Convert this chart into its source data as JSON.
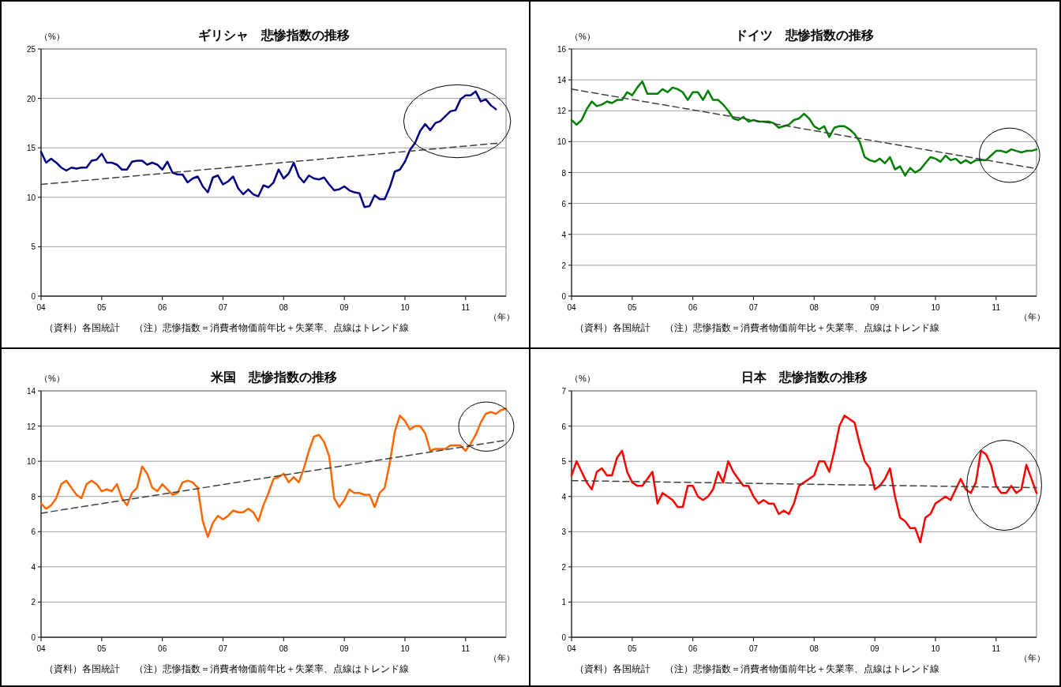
{
  "chart_data": [
    {
      "type": "line",
      "title": "ギリシャ　悲惨指数の推移",
      "ylabel": "（%）",
      "xlabel": "（年）",
      "annotations": [
        "（資料）各国統計",
        "（注）悲惨指数＝消費者物価前年比＋失業率、点線はトレンド線"
      ],
      "xlim": [
        "2004-01",
        "2011-09"
      ],
      "xticks": [
        {
          "value": "2004-01",
          "label": "04"
        },
        {
          "value": "2005-01",
          "label": "05"
        },
        {
          "value": "2006-01",
          "label": "06"
        },
        {
          "value": "2007-01",
          "label": "07"
        },
        {
          "value": "2008-01",
          "label": "08"
        },
        {
          "value": "2009-01",
          "label": "09"
        },
        {
          "value": "2010-01",
          "label": "10"
        },
        {
          "value": "2011-01",
          "label": "11"
        }
      ],
      "ylim": [
        0,
        25
      ],
      "yticks": [
        0,
        5,
        10,
        15,
        20,
        25
      ],
      "grid": "y",
      "x": [
        "2004-01",
        "2004-02",
        "2004-03",
        "2004-04",
        "2004-05",
        "2004-06",
        "2004-07",
        "2004-08",
        "2004-09",
        "2004-10",
        "2004-11",
        "2004-12",
        "2005-01",
        "2005-02",
        "2005-03",
        "2005-04",
        "2005-05",
        "2005-06",
        "2005-07",
        "2005-08",
        "2005-09",
        "2005-10",
        "2005-11",
        "2005-12",
        "2006-01",
        "2006-02",
        "2006-03",
        "2006-04",
        "2006-05",
        "2006-06",
        "2006-07",
        "2006-08",
        "2006-09",
        "2006-10",
        "2006-11",
        "2006-12",
        "2007-01",
        "2007-02",
        "2007-03",
        "2007-04",
        "2007-05",
        "2007-06",
        "2007-07",
        "2007-08",
        "2007-09",
        "2007-10",
        "2007-11",
        "2007-12",
        "2008-01",
        "2008-02",
        "2008-03",
        "2008-04",
        "2008-05",
        "2008-06",
        "2008-07",
        "2008-08",
        "2008-09",
        "2008-10",
        "2008-11",
        "2008-12",
        "2009-01",
        "2009-02",
        "2009-03",
        "2009-04",
        "2009-05",
        "2009-06",
        "2009-07",
        "2009-08",
        "2009-09",
        "2009-10",
        "2009-11",
        "2009-12",
        "2010-01",
        "2010-02",
        "2010-03",
        "2010-04",
        "2010-05",
        "2010-06",
        "2010-07",
        "2010-08",
        "2010-09",
        "2010-10",
        "2010-11",
        "2010-12",
        "2011-01",
        "2011-02",
        "2011-03",
        "2011-04",
        "2011-05",
        "2011-06",
        "2011-07"
      ],
      "series": [
        {
          "color": "#000080",
          "values": [
            14.6,
            13.5,
            13.9,
            13.5,
            13.0,
            12.7,
            13.0,
            12.9,
            13.0,
            13.0,
            13.7,
            13.8,
            14.4,
            13.5,
            13.5,
            13.3,
            12.8,
            12.8,
            13.6,
            13.7,
            13.7,
            13.3,
            13.5,
            13.3,
            12.8,
            13.6,
            12.5,
            12.3,
            12.3,
            11.5,
            11.9,
            12.1,
            11.1,
            10.5,
            12.0,
            12.2,
            11.3,
            11.6,
            12.1,
            10.9,
            10.3,
            10.8,
            10.3,
            10.1,
            11.2,
            11.0,
            11.5,
            12.8,
            11.9,
            12.4,
            13.5,
            12.1,
            11.5,
            12.2,
            11.9,
            11.8,
            12.0,
            11.3,
            10.7,
            10.8,
            11.1,
            10.7,
            10.5,
            10.4,
            9.0,
            9.1,
            10.2,
            9.8,
            9.8,
            11.0,
            12.6,
            12.8,
            13.6,
            14.8,
            15.5,
            16.7,
            17.4,
            16.8,
            17.5,
            17.7,
            18.2,
            18.7,
            18.8,
            19.9,
            20.3,
            20.3,
            20.7,
            19.7,
            19.9,
            19.3,
            18.9
          ]
        },
        {
          "type": "line",
          "x": [
            "2004-01",
            "2011-08"
          ],
          "values": [
            11.3,
            15.5
          ],
          "color": "#404040",
          "line_style": "dashed"
        }
      ]
    },
    {
      "type": "line",
      "title": "ドイツ　悲惨指数の推移",
      "ylabel": "（%）",
      "xlabel": "（年）",
      "annotations": [
        "（資料）各国統計",
        "（注）悲惨指数＝消費者物価前年比＋失業率、点線はトレンド線"
      ],
      "xlim": [
        "2004-01",
        "2011-09"
      ],
      "xticks": [
        {
          "value": "2004-01",
          "label": "04"
        },
        {
          "value": "2005-01",
          "label": "05"
        },
        {
          "value": "2006-01",
          "label": "06"
        },
        {
          "value": "2007-01",
          "label": "07"
        },
        {
          "value": "2008-01",
          "label": "08"
        },
        {
          "value": "2009-01",
          "label": "09"
        },
        {
          "value": "2010-01",
          "label": "10"
        },
        {
          "value": "2011-01",
          "label": "11"
        }
      ],
      "ylim": [
        0,
        16
      ],
      "yticks": [
        0,
        2,
        4,
        6,
        8,
        10,
        12,
        14,
        16
      ],
      "grid": "y",
      "x": [
        "2004-01",
        "2004-02",
        "2004-03",
        "2004-04",
        "2004-05",
        "2004-06",
        "2004-07",
        "2004-08",
        "2004-09",
        "2004-10",
        "2004-11",
        "2004-12",
        "2005-01",
        "2005-02",
        "2005-03",
        "2005-04",
        "2005-05",
        "2005-06",
        "2005-07",
        "2005-08",
        "2005-09",
        "2005-10",
        "2005-11",
        "2005-12",
        "2006-01",
        "2006-02",
        "2006-03",
        "2006-04",
        "2006-05",
        "2006-06",
        "2006-07",
        "2006-08",
        "2006-09",
        "2006-10",
        "2006-11",
        "2006-12",
        "2007-01",
        "2007-02",
        "2007-03",
        "2007-04",
        "2007-05",
        "2007-06",
        "2007-07",
        "2007-08",
        "2007-09",
        "2007-10",
        "2007-11",
        "2007-12",
        "2008-01",
        "2008-02",
        "2008-03",
        "2008-04",
        "2008-05",
        "2008-06",
        "2008-07",
        "2008-08",
        "2008-09",
        "2008-10",
        "2008-11",
        "2008-12",
        "2009-01",
        "2009-02",
        "2009-03",
        "2009-04",
        "2009-05",
        "2009-06",
        "2009-07",
        "2009-08",
        "2009-09",
        "2009-10",
        "2009-11",
        "2009-12",
        "2010-01",
        "2010-02",
        "2010-03",
        "2010-04",
        "2010-05",
        "2010-06",
        "2010-07",
        "2010-08",
        "2010-09",
        "2010-10",
        "2010-11",
        "2010-12",
        "2011-01",
        "2011-02",
        "2011-03",
        "2011-04",
        "2011-05",
        "2011-06",
        "2011-07",
        "2011-08",
        "2011-09"
      ],
      "series": [
        {
          "color": "#008000",
          "values": [
            11.4,
            11.1,
            11.4,
            12.1,
            12.6,
            12.3,
            12.4,
            12.6,
            12.5,
            12.7,
            12.7,
            13.2,
            13.0,
            13.5,
            13.9,
            13.1,
            13.1,
            13.1,
            13.4,
            13.2,
            13.5,
            13.4,
            13.2,
            12.7,
            13.2,
            13.2,
            12.7,
            13.3,
            12.7,
            12.7,
            12.4,
            12.0,
            11.5,
            11.4,
            11.6,
            11.3,
            11.4,
            11.3,
            11.3,
            11.3,
            11.2,
            10.9,
            11.0,
            11.1,
            11.4,
            11.5,
            11.8,
            11.5,
            11.0,
            10.8,
            11.0,
            10.3,
            10.9,
            11.0,
            11.0,
            10.8,
            10.5,
            10.0,
            9.0,
            8.8,
            8.7,
            8.9,
            8.6,
            9.0,
            8.2,
            8.4,
            7.8,
            8.3,
            8.0,
            8.2,
            8.6,
            9.0,
            8.9,
            8.7,
            9.1,
            8.8,
            8.9,
            8.6,
            8.8,
            8.6,
            8.8,
            8.8,
            8.8,
            9.1,
            9.4,
            9.4,
            9.3,
            9.5,
            9.4,
            9.3,
            9.4,
            9.4,
            9.5
          ]
        },
        {
          "type": "line",
          "x": [
            "2004-01",
            "2011-09"
          ],
          "values": [
            13.4,
            8.25
          ],
          "color": "#404040",
          "line_style": "dashed"
        }
      ]
    },
    {
      "type": "line",
      "title": "米国　悲惨指数の推移",
      "ylabel": "（%）",
      "xlabel": "（年）",
      "annotations": [
        "（資料）各国統計",
        "（注）悲惨指数＝消費者物価前年比＋失業率、点線はトレンド線"
      ],
      "xlim": [
        "2004-01",
        "2011-09"
      ],
      "xticks": [
        {
          "value": "2004-01",
          "label": "04"
        },
        {
          "value": "2005-01",
          "label": "05"
        },
        {
          "value": "2006-01",
          "label": "06"
        },
        {
          "value": "2007-01",
          "label": "07"
        },
        {
          "value": "2008-01",
          "label": "08"
        },
        {
          "value": "2009-01",
          "label": "09"
        },
        {
          "value": "2010-01",
          "label": "10"
        },
        {
          "value": "2011-01",
          "label": "11"
        }
      ],
      "ylim": [
        0,
        14
      ],
      "yticks": [
        0,
        2,
        4,
        6,
        8,
        10,
        12,
        14
      ],
      "grid": "y",
      "x": [
        "2004-01",
        "2004-02",
        "2004-03",
        "2004-04",
        "2004-05",
        "2004-06",
        "2004-07",
        "2004-08",
        "2004-09",
        "2004-10",
        "2004-11",
        "2004-12",
        "2005-01",
        "2005-02",
        "2005-03",
        "2005-04",
        "2005-05",
        "2005-06",
        "2005-07",
        "2005-08",
        "2005-09",
        "2005-10",
        "2005-11",
        "2005-12",
        "2006-01",
        "2006-02",
        "2006-03",
        "2006-04",
        "2006-05",
        "2006-06",
        "2006-07",
        "2006-08",
        "2006-09",
        "2006-10",
        "2006-11",
        "2006-12",
        "2007-01",
        "2007-02",
        "2007-03",
        "2007-04",
        "2007-05",
        "2007-06",
        "2007-07",
        "2007-08",
        "2007-09",
        "2007-10",
        "2007-11",
        "2007-12",
        "2008-01",
        "2008-02",
        "2008-03",
        "2008-04",
        "2008-05",
        "2008-06",
        "2008-07",
        "2008-08",
        "2008-09",
        "2008-10",
        "2008-11",
        "2008-12",
        "2009-01",
        "2009-02",
        "2009-03",
        "2009-04",
        "2009-05",
        "2009-06",
        "2009-07",
        "2009-08",
        "2009-09",
        "2009-10",
        "2009-11",
        "2009-12",
        "2010-01",
        "2010-02",
        "2010-03",
        "2010-04",
        "2010-05",
        "2010-06",
        "2010-07",
        "2010-08",
        "2010-09",
        "2010-10",
        "2010-11",
        "2010-12",
        "2011-01",
        "2011-02",
        "2011-03",
        "2011-04",
        "2011-05",
        "2011-06",
        "2011-07",
        "2011-08",
        "2011-09"
      ],
      "series": [
        {
          "color": "#ff6600",
          "values": [
            7.6,
            7.3,
            7.5,
            7.9,
            8.7,
            8.9,
            8.5,
            8.1,
            7.9,
            8.7,
            8.9,
            8.7,
            8.3,
            8.4,
            8.3,
            8.7,
            7.9,
            7.5,
            8.2,
            8.5,
            9.7,
            9.3,
            8.5,
            8.3,
            8.7,
            8.4,
            8.1,
            8.2,
            8.8,
            8.9,
            8.8,
            8.5,
            6.6,
            5.7,
            6.5,
            6.9,
            6.7,
            6.9,
            7.2,
            7.1,
            7.1,
            7.3,
            7.1,
            6.6,
            7.5,
            8.2,
            9.0,
            9.1,
            9.3,
            8.8,
            9.1,
            8.8,
            9.6,
            10.6,
            11.4,
            11.5,
            11.1,
            10.3,
            7.9,
            7.4,
            7.8,
            8.4,
            8.2,
            8.2,
            8.1,
            8.1,
            7.4,
            8.2,
            8.5,
            9.9,
            11.7,
            12.6,
            12.3,
            11.8,
            12.0,
            12.0,
            11.6,
            10.6,
            10.7,
            10.7,
            10.7,
            10.9,
            10.9,
            10.9,
            10.6,
            11.0,
            11.5,
            12.2,
            12.7,
            12.8,
            12.7,
            12.9,
            13.0
          ]
        },
        {
          "type": "line",
          "x": [
            "2004-01",
            "2011-09"
          ],
          "values": [
            7.05,
            11.2
          ],
          "color": "#404040",
          "line_style": "dashed"
        }
      ]
    },
    {
      "type": "line",
      "title": "日本　悲惨指数の推移",
      "ylabel": "（%）",
      "xlabel": "（年）",
      "annotations": [
        "（資料）各国統計",
        "（注）悲惨指数＝消費者物価前年比＋失業率、点線はトレンド線"
      ],
      "xlim": [
        "2004-01",
        "2011-09"
      ],
      "xticks": [
        {
          "value": "2004-01",
          "label": "04"
        },
        {
          "value": "2005-01",
          "label": "05"
        },
        {
          "value": "2006-01",
          "label": "06"
        },
        {
          "value": "2007-01",
          "label": "07"
        },
        {
          "value": "2008-01",
          "label": "08"
        },
        {
          "value": "2009-01",
          "label": "09"
        },
        {
          "value": "2010-01",
          "label": "10"
        },
        {
          "value": "2011-01",
          "label": "11"
        }
      ],
      "ylim": [
        0,
        7
      ],
      "yticks": [
        0,
        1,
        2,
        3,
        4,
        5,
        6,
        7
      ],
      "grid": "y",
      "x": [
        "2004-01",
        "2004-02",
        "2004-03",
        "2004-04",
        "2004-05",
        "2004-06",
        "2004-07",
        "2004-08",
        "2004-09",
        "2004-10",
        "2004-11",
        "2004-12",
        "2005-01",
        "2005-02",
        "2005-03",
        "2005-04",
        "2005-05",
        "2005-06",
        "2005-07",
        "2005-08",
        "2005-09",
        "2005-10",
        "2005-11",
        "2005-12",
        "2006-01",
        "2006-02",
        "2006-03",
        "2006-04",
        "2006-05",
        "2006-06",
        "2006-07",
        "2006-08",
        "2006-09",
        "2006-10",
        "2006-11",
        "2006-12",
        "2007-01",
        "2007-02",
        "2007-03",
        "2007-04",
        "2007-05",
        "2007-06",
        "2007-07",
        "2007-08",
        "2007-09",
        "2007-10",
        "2007-11",
        "2007-12",
        "2008-01",
        "2008-02",
        "2008-03",
        "2008-04",
        "2008-05",
        "2008-06",
        "2008-07",
        "2008-08",
        "2008-09",
        "2008-10",
        "2008-11",
        "2008-12",
        "2009-01",
        "2009-02",
        "2009-03",
        "2009-04",
        "2009-05",
        "2009-06",
        "2009-07",
        "2009-08",
        "2009-09",
        "2009-10",
        "2009-11",
        "2009-12",
        "2010-01",
        "2010-02",
        "2010-03",
        "2010-04",
        "2010-05",
        "2010-06",
        "2010-07",
        "2010-08",
        "2010-09",
        "2010-10",
        "2010-11",
        "2010-12",
        "2011-01",
        "2011-02",
        "2011-03",
        "2011-04",
        "2011-05",
        "2011-06",
        "2011-07",
        "2011-08",
        "2011-09"
      ],
      "series": [
        {
          "color": "#ff0000",
          "values": [
            4.6,
            5.0,
            4.7,
            4.4,
            4.2,
            4.7,
            4.8,
            4.6,
            4.6,
            5.1,
            5.3,
            4.7,
            4.4,
            4.3,
            4.3,
            4.5,
            4.7,
            3.8,
            4.1,
            4.0,
            3.9,
            3.7,
            3.7,
            4.3,
            4.3,
            4.0,
            3.9,
            4.0,
            4.2,
            4.7,
            4.4,
            5.0,
            4.7,
            4.5,
            4.3,
            4.3,
            4.0,
            3.8,
            3.9,
            3.8,
            3.8,
            3.5,
            3.6,
            3.5,
            3.8,
            4.3,
            4.4,
            4.5,
            4.6,
            5.0,
            5.0,
            4.7,
            5.3,
            6.0,
            6.3,
            6.2,
            6.1,
            5.5,
            5.0,
            4.8,
            4.2,
            4.3,
            4.5,
            4.8,
            4.0,
            3.4,
            3.3,
            3.1,
            3.1,
            2.7,
            3.4,
            3.5,
            3.8,
            3.9,
            4.0,
            3.9,
            4.2,
            4.5,
            4.2,
            4.1,
            4.4,
            5.3,
            5.2,
            4.9,
            4.3,
            4.1,
            4.1,
            4.3,
            4.1,
            4.2,
            4.9,
            4.5,
            4.1
          ]
        },
        {
          "type": "line",
          "x": [
            "2004-01",
            "2011-09"
          ],
          "values": [
            4.45,
            4.25
          ],
          "color": "#404040",
          "line_style": "dashed"
        }
      ]
    }
  ]
}
